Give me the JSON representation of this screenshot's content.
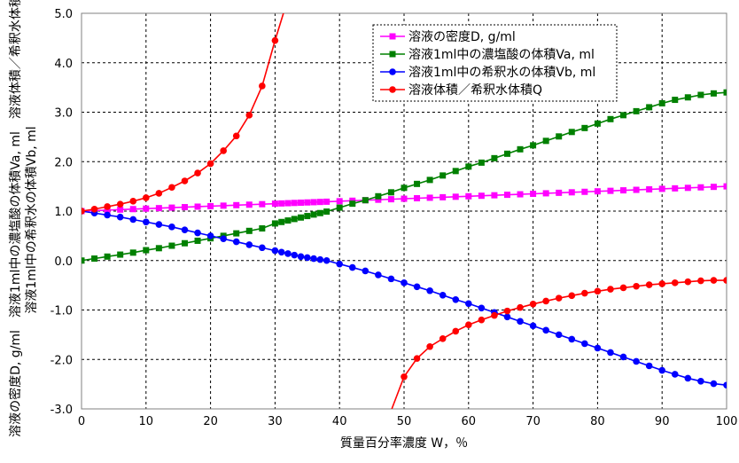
{
  "chart_data": {
    "type": "line",
    "title": "",
    "xlabel": "質量百分率濃度 W，％",
    "ylabel_lines": [
      "溶液の密度D, g/ml　溶液1ml中の濃塩酸の体積Va, ml　溶液体積／希釈水体積Q",
      "溶液1ml中の希釈水の体積Vb, ml"
    ],
    "xlim": [
      0,
      100
    ],
    "ylim": [
      -3.0,
      5.0
    ],
    "xticks": [
      "0",
      "10",
      "20",
      "30",
      "40",
      "50",
      "60",
      "70",
      "80",
      "90",
      "100"
    ],
    "yticks": [
      "-3.0",
      "-2.0",
      "-1.0",
      "0.0",
      "1.0",
      "2.0",
      "3.0",
      "4.0",
      "5.0"
    ],
    "grid": true,
    "legend_position": "top-right",
    "series": [
      {
        "name": "溶液の密度D, g/ml",
        "color": "#ff00ff",
        "marker": "square",
        "x": [
          0,
          2,
          4,
          6,
          8,
          10,
          12,
          14,
          16,
          18,
          20,
          22,
          24,
          26,
          28,
          30,
          31,
          32,
          33,
          34,
          35,
          36,
          37,
          38,
          40,
          42,
          44,
          46,
          48,
          50,
          52,
          54,
          56,
          58,
          60,
          62,
          64,
          66,
          68,
          70,
          72,
          74,
          76,
          78,
          80,
          82,
          84,
          86,
          88,
          90,
          92,
          94,
          96,
          98,
          100
        ],
        "values": [
          1.0,
          1.01,
          1.02,
          1.03,
          1.04,
          1.05,
          1.06,
          1.07,
          1.08,
          1.09,
          1.1,
          1.11,
          1.12,
          1.13,
          1.14,
          1.15,
          1.155,
          1.16,
          1.165,
          1.17,
          1.175,
          1.18,
          1.185,
          1.19,
          1.2,
          1.21,
          1.22,
          1.23,
          1.24,
          1.25,
          1.26,
          1.27,
          1.28,
          1.29,
          1.3,
          1.31,
          1.32,
          1.33,
          1.34,
          1.35,
          1.36,
          1.37,
          1.38,
          1.39,
          1.4,
          1.41,
          1.42,
          1.43,
          1.44,
          1.45,
          1.46,
          1.47,
          1.48,
          1.49,
          1.5
        ]
      },
      {
        "name": "溶液1ml中の濃塩酸の体積Va, ml",
        "color": "#008000",
        "marker": "square",
        "x": [
          0,
          2,
          4,
          6,
          8,
          10,
          12,
          14,
          16,
          18,
          20,
          22,
          24,
          26,
          28,
          30,
          31,
          32,
          33,
          34,
          35,
          36,
          37,
          38,
          40,
          42,
          44,
          46,
          48,
          50,
          52,
          54,
          56,
          58,
          60,
          62,
          64,
          66,
          68,
          70,
          72,
          74,
          76,
          78,
          80,
          82,
          84,
          86,
          88,
          90,
          92,
          94,
          96,
          98,
          100
        ],
        "values": [
          0.0,
          0.04,
          0.08,
          0.12,
          0.16,
          0.21,
          0.25,
          0.3,
          0.35,
          0.4,
          0.45,
          0.5,
          0.55,
          0.6,
          0.65,
          0.75,
          0.78,
          0.81,
          0.84,
          0.87,
          0.9,
          0.93,
          0.96,
          0.99,
          1.07,
          1.15,
          1.22,
          1.3,
          1.38,
          1.47,
          1.55,
          1.63,
          1.72,
          1.81,
          1.9,
          1.98,
          2.07,
          2.16,
          2.25,
          2.33,
          2.42,
          2.51,
          2.6,
          2.68,
          2.77,
          2.86,
          2.94,
          3.02,
          3.1,
          3.18,
          3.25,
          3.3,
          3.35,
          3.38,
          3.4
        ]
      },
      {
        "name": "溶液1ml中の希釈水の体積Vb, ml",
        "color": "#0000ff",
        "marker": "circle",
        "x": [
          0,
          2,
          4,
          6,
          8,
          10,
          12,
          14,
          16,
          18,
          20,
          22,
          24,
          26,
          28,
          30,
          31,
          32,
          33,
          34,
          35,
          36,
          37,
          38,
          40,
          42,
          44,
          46,
          48,
          50,
          52,
          54,
          56,
          58,
          60,
          62,
          64,
          66,
          68,
          70,
          72,
          74,
          76,
          78,
          80,
          82,
          84,
          86,
          88,
          90,
          92,
          94,
          96,
          98,
          100
        ],
        "values": [
          1.0,
          0.96,
          0.92,
          0.88,
          0.83,
          0.78,
          0.73,
          0.68,
          0.62,
          0.56,
          0.5,
          0.44,
          0.38,
          0.32,
          0.26,
          0.2,
          0.17,
          0.14,
          0.11,
          0.08,
          0.06,
          0.04,
          0.02,
          0.0,
          -0.07,
          -0.14,
          -0.21,
          -0.29,
          -0.37,
          -0.45,
          -0.53,
          -0.61,
          -0.7,
          -0.79,
          -0.87,
          -0.96,
          -1.05,
          -1.14,
          -1.23,
          -1.32,
          -1.41,
          -1.5,
          -1.59,
          -1.68,
          -1.77,
          -1.86,
          -1.95,
          -2.04,
          -2.13,
          -2.22,
          -2.3,
          -2.38,
          -2.44,
          -2.49,
          -2.52
        ]
      },
      {
        "name": "溶液体積／希釈水体積Q",
        "color": "#ff0000",
        "marker": "circle",
        "segments": [
          {
            "x": [
              0,
              2,
              4,
              6,
              8,
              10,
              12,
              14,
              16,
              18,
              20,
              22,
              24,
              26,
              28,
              30,
              31.3
            ],
            "values": [
              1.0,
              1.04,
              1.09,
              1.14,
              1.2,
              1.27,
              1.36,
              1.48,
              1.61,
              1.77,
              1.96,
              2.22,
              2.52,
              2.94,
              3.53,
              4.45,
              5.0
            ],
            "markers": [
              true,
              true,
              true,
              true,
              true,
              true,
              true,
              true,
              true,
              true,
              true,
              true,
              true,
              true,
              true,
              true,
              false
            ]
          },
          {
            "x": [
              48.1,
              50,
              52,
              54,
              56,
              58,
              60,
              62,
              64,
              66,
              68,
              70,
              72,
              74,
              76,
              78,
              80,
              82,
              84,
              86,
              88,
              90,
              92,
              94,
              96,
              98,
              100
            ],
            "values": [
              -3.0,
              -2.35,
              -1.98,
              -1.74,
              -1.58,
              -1.43,
              -1.3,
              -1.2,
              -1.11,
              -1.02,
              -0.95,
              -0.88,
              -0.82,
              -0.76,
              -0.71,
              -0.66,
              -0.62,
              -0.58,
              -0.55,
              -0.52,
              -0.49,
              -0.47,
              -0.45,
              -0.43,
              -0.41,
              -0.4,
              -0.4
            ],
            "markers": [
              false,
              true,
              true,
              true,
              true,
              true,
              true,
              true,
              true,
              true,
              true,
              true,
              true,
              true,
              true,
              true,
              true,
              true,
              true,
              true,
              true,
              true,
              true,
              true,
              true,
              true,
              true
            ]
          }
        ]
      }
    ]
  }
}
